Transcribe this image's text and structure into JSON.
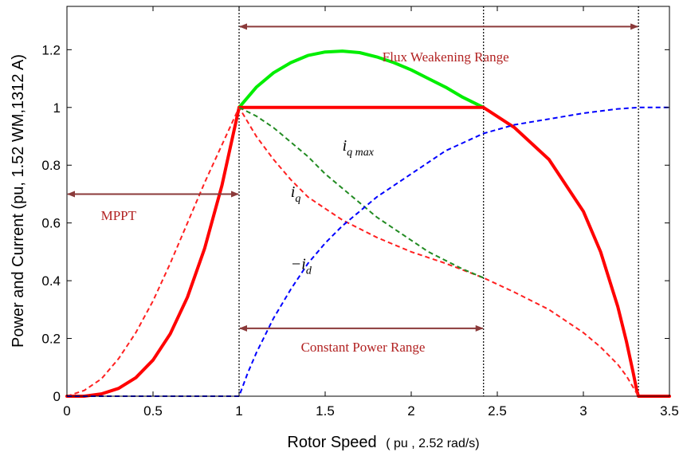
{
  "chart_data": {
    "type": "line",
    "title": "",
    "xlabel": "Rotor Speed",
    "xlabel_unit": "( pu , 2.52 rad/s)",
    "ylabel": "Power and Current (pu, 1.52 WM,1312 A)",
    "xlim": [
      0,
      3.5
    ],
    "ylim": [
      0,
      1.35
    ],
    "grid": false,
    "xticks": [
      "0",
      "0.5",
      "1",
      "1.5",
      "2",
      "2.5",
      "3",
      "3.5"
    ],
    "yticks": [
      "0",
      "0.2",
      "0.4",
      "0.6",
      "0.8",
      "1",
      "1.2"
    ],
    "series": [
      {
        "id": "green",
        "color": "#00ee00",
        "style": "solid",
        "x": [
          1.0,
          1.1,
          1.2,
          1.3,
          1.4,
          1.5,
          1.6,
          1.7,
          1.8,
          1.9,
          2.0,
          2.1,
          2.2,
          2.3,
          2.42
        ],
        "y": [
          1.0,
          1.07,
          1.12,
          1.155,
          1.18,
          1.192,
          1.195,
          1.19,
          1.175,
          1.155,
          1.13,
          1.1,
          1.07,
          1.035,
          1.0
        ]
      },
      {
        "id": "red-thick",
        "color": "#ff0000",
        "style": "solid-thick",
        "x": [
          0,
          0.1,
          0.2,
          0.3,
          0.4,
          0.5,
          0.6,
          0.7,
          0.8,
          0.9,
          1.0,
          2.42,
          2.6,
          2.8,
          3.0,
          3.1,
          3.2,
          3.25,
          3.29,
          3.31,
          3.32,
          3.5
        ],
        "y": [
          0,
          0,
          0.008,
          0.027,
          0.064,
          0.125,
          0.216,
          0.343,
          0.512,
          0.729,
          1.0,
          1.0,
          0.93,
          0.82,
          0.64,
          0.5,
          0.31,
          0.19,
          0.08,
          0.02,
          0,
          0
        ]
      },
      {
        "id": "red-dashed",
        "label": "i_q",
        "color": "#ff2020",
        "style": "dashed",
        "x": [
          0,
          0.1,
          0.2,
          0.3,
          0.4,
          0.5,
          0.6,
          0.7,
          0.8,
          0.9,
          1.0,
          1.1,
          1.2,
          1.3,
          1.4,
          1.5,
          1.6,
          1.8,
          2.0,
          2.2,
          2.42,
          2.6,
          2.8,
          3.0,
          3.1,
          3.2,
          3.25,
          3.3,
          3.32
        ],
        "y": [
          0,
          0.02,
          0.06,
          0.13,
          0.22,
          0.33,
          0.46,
          0.6,
          0.74,
          0.87,
          1.0,
          0.9,
          0.82,
          0.75,
          0.69,
          0.65,
          0.61,
          0.55,
          0.5,
          0.46,
          0.41,
          0.36,
          0.3,
          0.22,
          0.17,
          0.11,
          0.07,
          0.02,
          0
        ]
      },
      {
        "id": "green-dashed",
        "label": "i_qmax",
        "color": "#228b22",
        "style": "dashed",
        "x": [
          1.0,
          1.1,
          1.2,
          1.3,
          1.4,
          1.5,
          1.6,
          1.7,
          1.8,
          1.9,
          2.0,
          2.1,
          2.2,
          2.3,
          2.42
        ],
        "y": [
          1.0,
          0.97,
          0.93,
          0.88,
          0.83,
          0.77,
          0.72,
          0.67,
          0.62,
          0.58,
          0.54,
          0.5,
          0.47,
          0.44,
          0.41
        ]
      },
      {
        "id": "blue-dashed",
        "label": "-i_d",
        "color": "#0000ff",
        "style": "dashed",
        "x": [
          0,
          0.5,
          1.0,
          1.05,
          1.1,
          1.2,
          1.3,
          1.4,
          1.5,
          1.6,
          1.8,
          2.0,
          2.2,
          2.42,
          2.6,
          2.8,
          3.0,
          3.2,
          3.32,
          3.4,
          3.5
        ],
        "y": [
          0,
          0,
          0,
          0.08,
          0.15,
          0.27,
          0.37,
          0.46,
          0.53,
          0.59,
          0.69,
          0.77,
          0.85,
          0.91,
          0.94,
          0.96,
          0.98,
          0.995,
          1.0,
          1.0,
          1.0
        ]
      }
    ],
    "vlines": [
      1.0,
      2.42,
      3.32
    ],
    "ranges": [
      {
        "label": "Flux Weakening Range",
        "x1": 1.0,
        "x2": 3.32,
        "y": 1.28,
        "label_x": 2.2,
        "label_y": 1.16
      },
      {
        "label": "MPPT",
        "x1": 0.0,
        "x2": 1.0,
        "y": 0.7,
        "label_x": 0.3,
        "label_y": 0.61
      },
      {
        "label": "Constant Power Range",
        "x1": 1.0,
        "x2": 2.42,
        "y": 0.235,
        "label_x": 1.72,
        "label_y": 0.155
      }
    ],
    "curve_labels": [
      {
        "main": "i",
        "sub": "q max",
        "x": 1.6,
        "y": 0.85
      },
      {
        "main": "i",
        "sub": "q",
        "x": 1.3,
        "y": 0.69
      },
      {
        "main": "−i",
        "sub": "d",
        "x": 1.3,
        "y": 0.44
      }
    ],
    "colors": {
      "annotation": "#b22222",
      "arrow": "#8b3a3a"
    }
  }
}
